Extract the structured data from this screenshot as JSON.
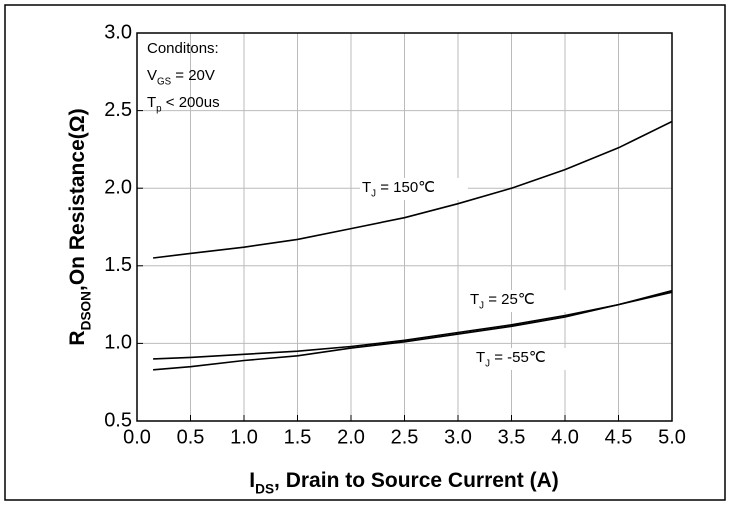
{
  "chart_data": {
    "type": "line",
    "x_label": {
      "base": "I",
      "sub": "DS",
      "text": ", Drain to Source Current  (A)"
    },
    "y_label": {
      "base": "R",
      "sub": "DSON",
      "text": ",On Resistance(Ω)"
    },
    "conditions": [
      {
        "text": "Conditons:"
      },
      {
        "base": "V",
        "sub": "GS",
        "text": " = 20V"
      },
      {
        "base": "T",
        "sub": "p",
        "text": " < 200us"
      }
    ],
    "x": [
      0.15,
      0.5,
      1.0,
      1.5,
      2.0,
      2.5,
      3.0,
      3.5,
      4.0,
      4.5,
      5.0
    ],
    "series": [
      {
        "label": {
          "base": "T",
          "sub": "J",
          "text": "  = 150℃"
        },
        "color": "#000000",
        "values": [
          1.55,
          1.58,
          1.62,
          1.67,
          1.74,
          1.81,
          1.9,
          2.0,
          2.12,
          2.26,
          2.43
        ]
      },
      {
        "label": {
          "base": "T",
          "sub": "J",
          "text": " = 25℃"
        },
        "color": "#000000",
        "values": [
          0.9,
          0.91,
          0.93,
          0.95,
          0.98,
          1.02,
          1.07,
          1.12,
          1.18,
          1.25,
          1.33
        ]
      },
      {
        "label": {
          "base": "T",
          "sub": "J",
          "text": " = -55℃"
        },
        "color": "#000000",
        "values": [
          0.83,
          0.85,
          0.89,
          0.92,
          0.97,
          1.01,
          1.06,
          1.11,
          1.17,
          1.25,
          1.34
        ]
      }
    ],
    "xlim": [
      0,
      5
    ],
    "ylim": [
      0.5,
      3.0
    ],
    "xticks": [
      {
        "value": 0,
        "label": "0.0"
      },
      0.5,
      {
        "value": 1,
        "label": "1.0"
      },
      1.5,
      {
        "value": 2,
        "label": "2.0"
      },
      2.5,
      {
        "value": 3,
        "label": "3.0"
      },
      3.5,
      {
        "value": 4,
        "label": "4.0"
      },
      4.5,
      {
        "value": 5,
        "label": "5.0"
      }
    ],
    "yticks": [
      0.5,
      {
        "value": 1,
        "label": "1.0"
      },
      1.5,
      {
        "value": 2,
        "label": "2.0"
      },
      2.5,
      {
        "value": 3,
        "label": "3.0"
      }
    ],
    "grid": true
  }
}
